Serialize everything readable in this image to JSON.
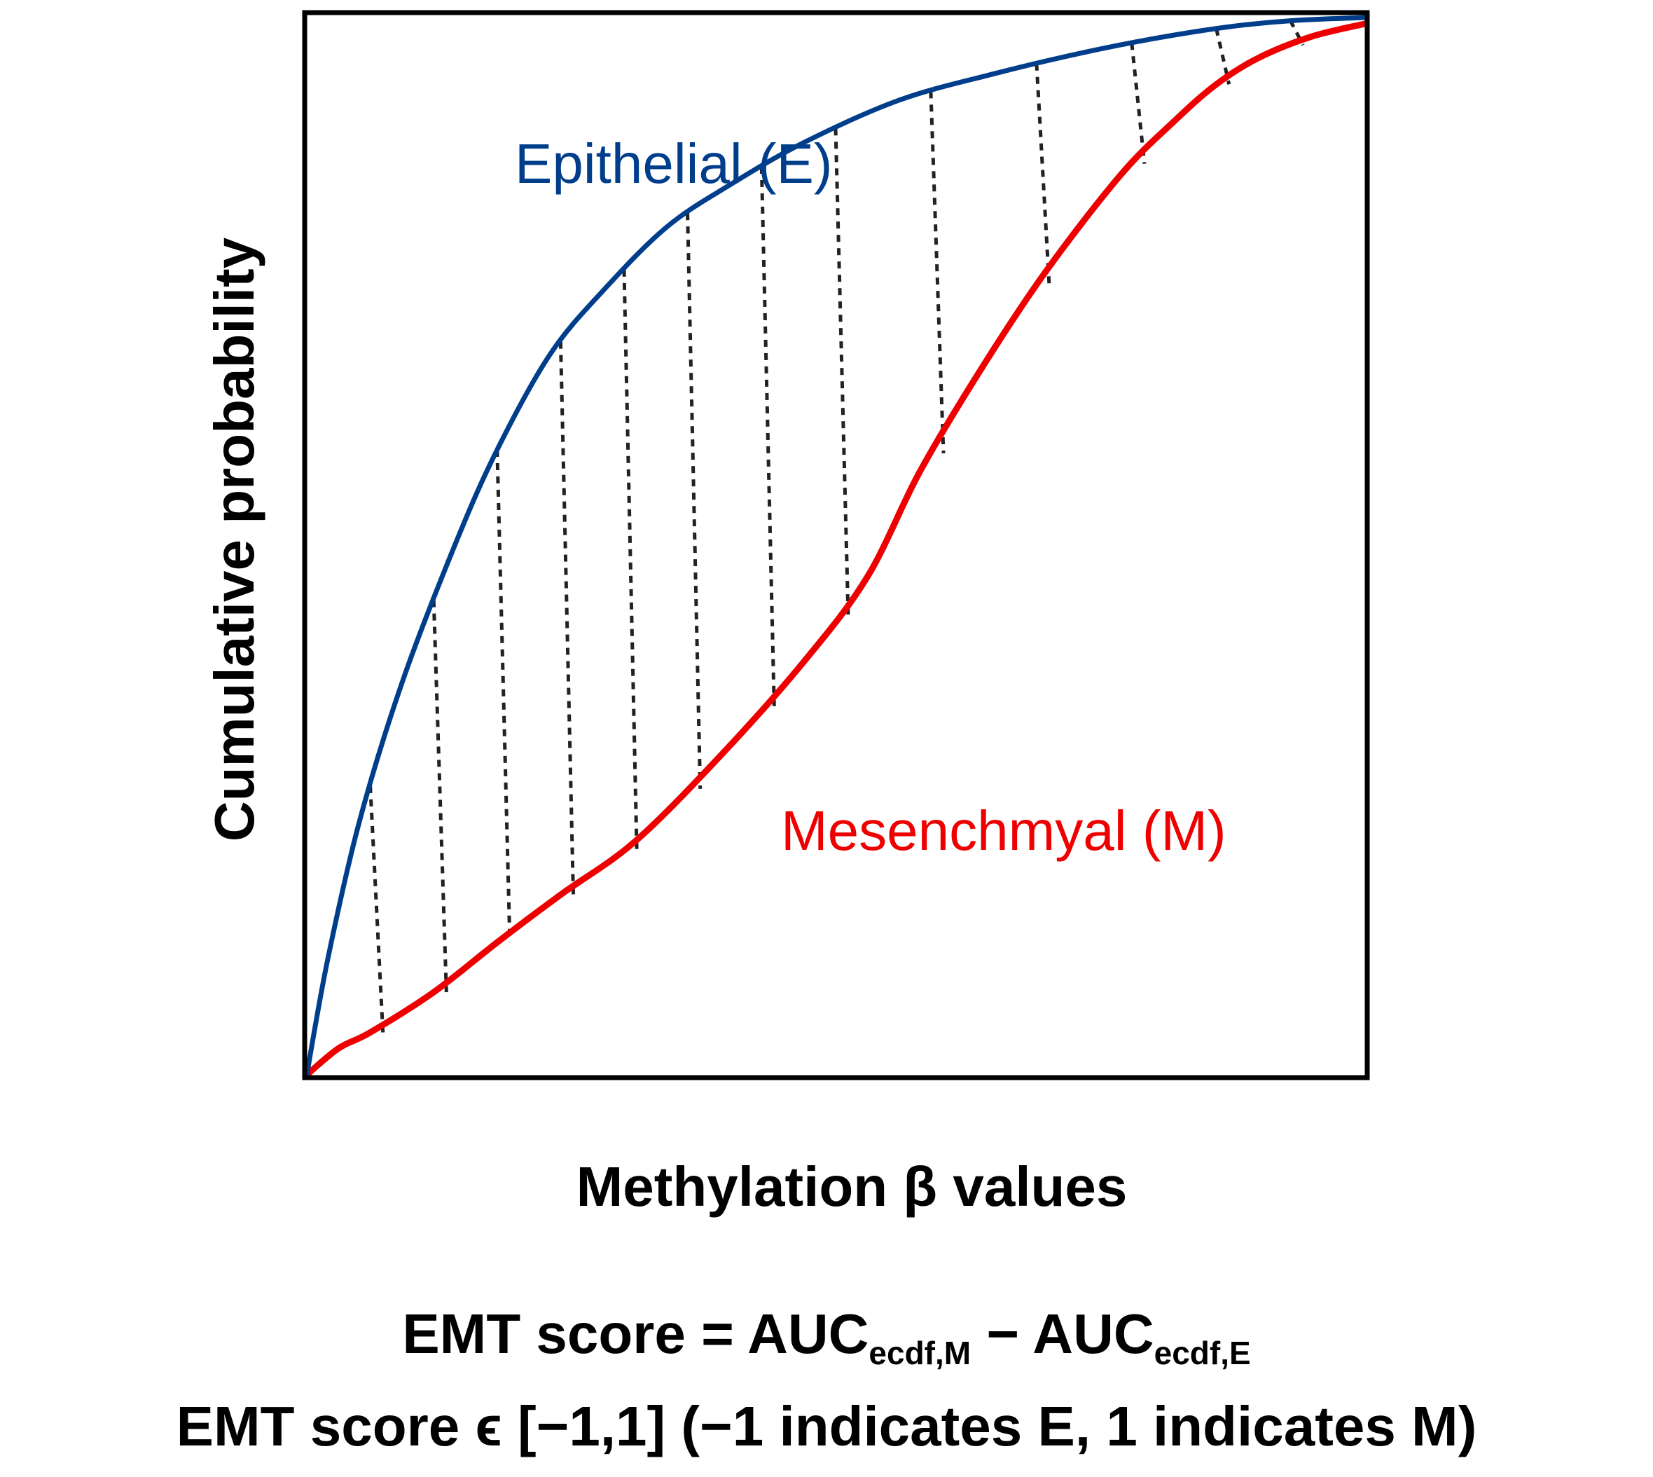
{
  "chart_data": {
    "type": "line",
    "title": "",
    "xlabel": "Methylation β values",
    "ylabel": "Cumulative probability",
    "xlim": [
      0,
      1
    ],
    "ylim": [
      0,
      1
    ],
    "grid": false,
    "series": [
      {
        "name": "Epithelial (E)",
        "color": "#003E8C",
        "x": [
          0,
          0.02,
          0.05,
          0.09,
          0.14,
          0.18,
          0.23,
          0.28,
          0.34,
          0.4,
          0.47,
          0.56,
          0.65,
          0.73,
          0.8,
          0.87,
          0.93,
          1.0
        ],
        "y": [
          0,
          0.11,
          0.24,
          0.37,
          0.5,
          0.59,
          0.68,
          0.74,
          0.8,
          0.84,
          0.88,
          0.92,
          0.945,
          0.964,
          0.978,
          0.989,
          0.995,
          0.998
        ]
      },
      {
        "name": "Mesenchmyal (M)",
        "color": "#EE0000",
        "x": [
          0,
          0.03,
          0.06,
          0.12,
          0.18,
          0.24,
          0.31,
          0.39,
          0.47,
          0.53,
          0.58,
          0.64,
          0.7,
          0.77,
          0.82,
          0.86,
          0.9,
          0.95,
          1.0
        ],
        "y": [
          0,
          0.025,
          0.04,
          0.078,
          0.125,
          0.17,
          0.22,
          0.3,
          0.39,
          0.47,
          0.57,
          0.67,
          0.76,
          0.85,
          0.9,
          0.935,
          0.96,
          0.98,
          0.992
        ]
      }
    ],
    "shaded_region": {
      "style": "dotted vertical lines",
      "between": [
        "Epithelial (E)",
        "Mesenchmyal (M)"
      ],
      "x_positions": [
        0.06,
        0.12,
        0.18,
        0.24,
        0.3,
        0.36,
        0.43,
        0.5,
        0.59,
        0.69,
        0.78,
        0.86,
        0.93
      ]
    }
  },
  "labels": {
    "ylabel": "Cumulative probability",
    "xlabel": "Methylation β values",
    "epithelial": "Epithelial (E)",
    "mesenchymal": "Mesenchmyal (M)"
  },
  "formula": {
    "line1_prefix": "EMT score = AUC",
    "line1_sub1": "ecdf,M",
    "line1_mid": " − AUC",
    "line1_sub2": "ecdf,E",
    "line2": "EMT score ϵ [−1,1] (−1 indicates E, 1 indicates M)"
  }
}
